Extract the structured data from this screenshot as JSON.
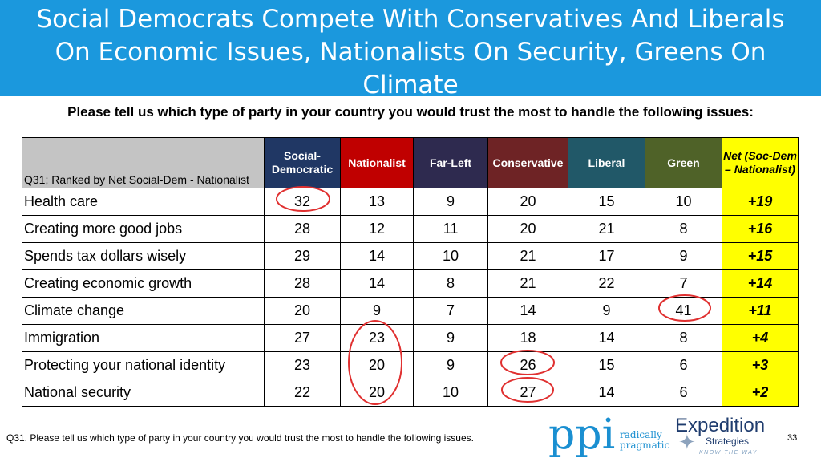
{
  "title": "Social Democrats Compete With Conservatives And Liberals On Economic Issues, Nationalists On Security, Greens On Climate",
  "subtitle": "Please tell us which type of party in your country you would trust the most to handle the following issues:",
  "table": {
    "label_header": "Q31; Ranked by Net Social-Dem - Nationalist",
    "columns": [
      {
        "label": "Social-Democratic",
        "color": "#203764"
      },
      {
        "label": "Nationalist",
        "color": "#c00000"
      },
      {
        "label": "Far-Left",
        "color": "#2e2a4f"
      },
      {
        "label": "Conservative",
        "color": "#6e2325"
      },
      {
        "label": "Liberal",
        "color": "#215868"
      },
      {
        "label": "Green",
        "color": "#4f6228"
      }
    ],
    "net_header": "Net (Soc-Dem – Nationalist)",
    "net_color": "#ffff00",
    "rows": [
      {
        "label": "Health care",
        "values": [
          "32",
          "13",
          "9",
          "20",
          "15",
          "10"
        ],
        "net": "+19"
      },
      {
        "label": "Creating more good jobs",
        "values": [
          "28",
          "12",
          "11",
          "20",
          "21",
          "8"
        ],
        "net": "+16"
      },
      {
        "label": "Spends tax dollars wisely",
        "values": [
          "29",
          "14",
          "10",
          "21",
          "17",
          "9"
        ],
        "net": "+15"
      },
      {
        "label": "Creating economic growth",
        "values": [
          "28",
          "14",
          "8",
          "21",
          "22",
          "7"
        ],
        "net": "+14"
      },
      {
        "label": "Climate change",
        "values": [
          "20",
          "9",
          "7",
          "14",
          "9",
          "41"
        ],
        "net": "+11"
      },
      {
        "label": "Immigration",
        "values": [
          "27",
          "23",
          "9",
          "18",
          "14",
          "8"
        ],
        "net": "+4"
      },
      {
        "label": "Protecting your national identity",
        "values": [
          "23",
          "20",
          "9",
          "26",
          "15",
          "6"
        ],
        "net": "+3"
      },
      {
        "label": "National security",
        "values": [
          "22",
          "20",
          "10",
          "27",
          "14",
          "6"
        ],
        "net": "+2"
      }
    ]
  },
  "highlight_color": "#e03030",
  "footnote": "Q31. Please tell us which type of party in your country you would trust the most to handle the following issues.",
  "page_number": "33",
  "logos": {
    "ppi": "ppi",
    "ppi_tagline_1": "radically",
    "ppi_tagline_2": "pragmatic",
    "expedition": "Expedition",
    "expedition_sub": "Strategies",
    "expedition_tag": "KNOW THE WAY",
    "expedition_icon": "compass-star-icon"
  }
}
